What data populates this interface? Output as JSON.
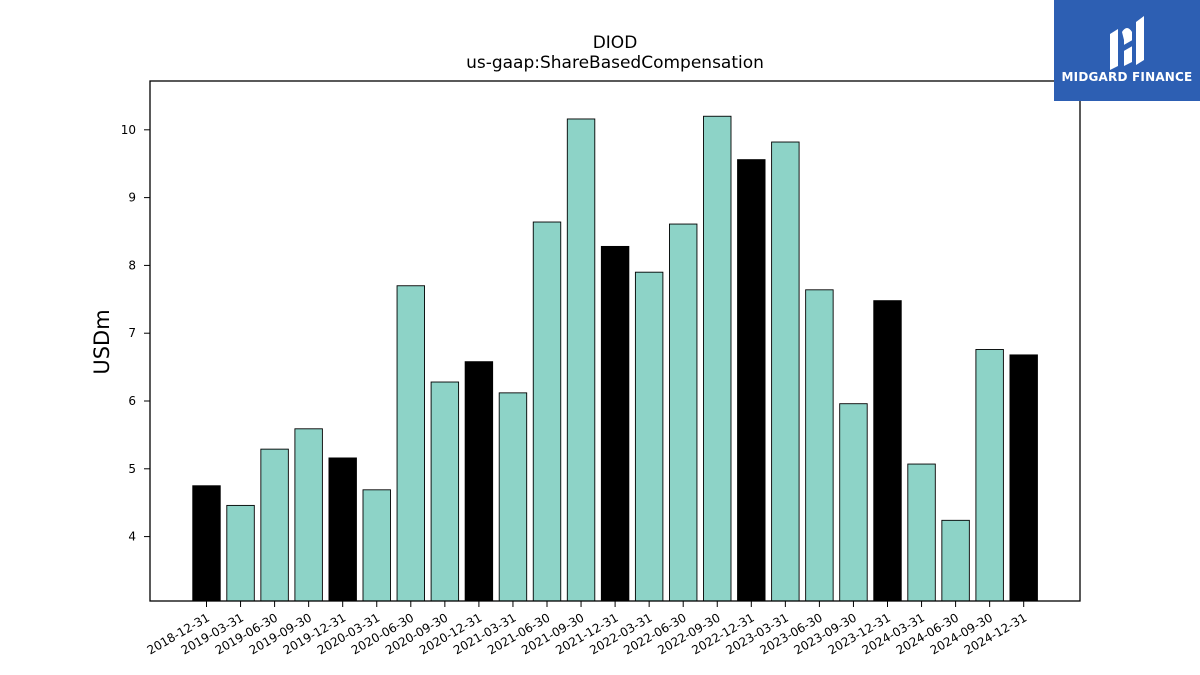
{
  "chart_data": {
    "type": "bar",
    "title": "DIOD",
    "subtitle": "us-gaap:ShareBasedCompensation",
    "xlabel": "",
    "ylabel": "USDm",
    "ylim": [
      3.05,
      10.72
    ],
    "yticks": [
      4,
      5,
      6,
      7,
      8,
      9,
      10
    ],
    "categories": [
      "2018-12-31",
      "2019-03-31",
      "2019-06-30",
      "2019-09-30",
      "2019-12-31",
      "2020-03-31",
      "2020-06-30",
      "2020-09-30",
      "2020-12-31",
      "2021-03-31",
      "2021-06-30",
      "2021-09-30",
      "2021-12-31",
      "2022-03-31",
      "2022-06-30",
      "2022-09-30",
      "2022-12-31",
      "2023-03-31",
      "2023-06-30",
      "2023-09-30",
      "2023-12-31",
      "2024-03-31",
      "2024-06-30",
      "2024-09-30",
      "2024-12-31"
    ],
    "values": [
      4.75,
      4.46,
      5.29,
      5.59,
      5.16,
      4.69,
      7.7,
      6.28,
      6.58,
      6.12,
      8.64,
      10.16,
      8.28,
      7.9,
      8.61,
      10.2,
      9.56,
      9.82,
      7.64,
      5.96,
      7.48,
      5.07,
      4.24,
      6.76,
      6.68
    ],
    "highlight_year_end": true,
    "colors": {
      "quarter": "#8dd3c7",
      "year_end": "#000000",
      "edge": "#000000"
    },
    "grid": false,
    "legend": "none"
  },
  "logo": {
    "text": "MIDGARD FINANCE",
    "background": "#2d5fb3"
  }
}
